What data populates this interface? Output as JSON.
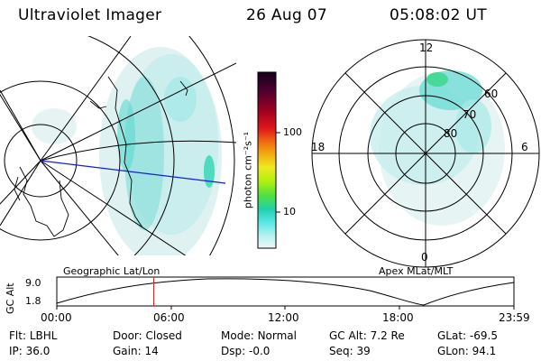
{
  "header": {
    "title": "Ultraviolet Imager",
    "date": "26 Aug 07",
    "time": "05:08:02 UT"
  },
  "colorbar": {
    "unit_label": "photon cm⁻²s⁻¹",
    "ticks": [
      "100",
      "10"
    ],
    "colors": [
      "#1a0020",
      "#5a0030",
      "#a00018",
      "#e01010",
      "#f06010",
      "#f0a010",
      "#f0e020",
      "#c0f010",
      "#60e040",
      "#20d0a0",
      "#60e8e0",
      "#b0f0f0",
      "#e8f8f8"
    ]
  },
  "left_map": {
    "label": "Geographic Lat/Lon"
  },
  "right_map": {
    "label": "Apex MLat/MLT",
    "mlt_labels": {
      "top": "12",
      "left": "18",
      "right": "6",
      "bottom": "0"
    },
    "mlat_labels": [
      "60",
      "70",
      "80"
    ]
  },
  "altitude_plot": {
    "ylabel": "GC Alt",
    "yticks": [
      "9.0",
      "1.8"
    ],
    "xticks": [
      "00:00",
      "06:00",
      "12:00",
      "18:00",
      "23:59"
    ],
    "current_time_fraction": 0.212
  },
  "info": {
    "row1": [
      {
        "key": "Flt:",
        "value": "LBHL"
      },
      {
        "key": "Door:",
        "value": "Closed"
      },
      {
        "key": "Mode:",
        "value": "Normal"
      },
      {
        "key": "GC Alt:",
        "value": "7.2 Re"
      },
      {
        "key": "GLat:",
        "value": "-69.5"
      }
    ],
    "row2": [
      {
        "key": "IP:",
        "value": "36.0"
      },
      {
        "key": "Gain:",
        "value": "14"
      },
      {
        "key": "Dsp:",
        "value": "-0.0"
      },
      {
        "key": "Seq:",
        "value": "39"
      },
      {
        "key": "GLon:",
        "value": "94.1"
      }
    ]
  }
}
